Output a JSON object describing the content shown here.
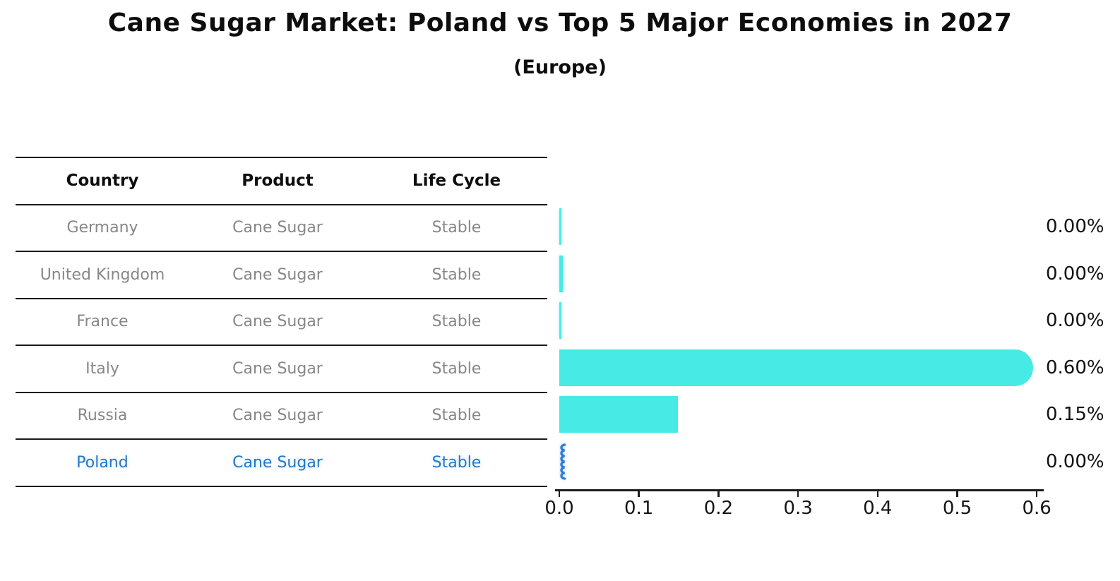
{
  "title": "Cane Sugar Market: Poland vs Top 5 Major Economies in 2027",
  "subtitle": "(Europe)",
  "table": {
    "headers": [
      "Country",
      "Product",
      "Life Cycle"
    ],
    "rows": [
      {
        "country": "Germany",
        "product": "Cane Sugar",
        "life_cycle": "Stable",
        "highlight": false
      },
      {
        "country": "United Kingdom",
        "product": "Cane Sugar",
        "life_cycle": "Stable",
        "highlight": false
      },
      {
        "country": "France",
        "product": "Cane Sugar",
        "life_cycle": "Stable",
        "highlight": false
      },
      {
        "country": "Italy",
        "product": "Cane Sugar",
        "life_cycle": "Stable",
        "highlight": false
      },
      {
        "country": "Russia",
        "product": "Cane Sugar",
        "life_cycle": "Stable",
        "highlight": false
      },
      {
        "country": "Poland",
        "product": "Cane Sugar",
        "life_cycle": "Stable",
        "highlight": true
      }
    ]
  },
  "chart_data": {
    "type": "bar",
    "orientation": "horizontal",
    "title": "Cane Sugar Market: Poland vs Top 5 Major Economies in 2027",
    "subtitle": "(Europe)",
    "categories": [
      "Germany",
      "United Kingdom",
      "France",
      "Italy",
      "Russia",
      "Poland"
    ],
    "values": [
      0.0,
      0.0,
      0.0,
      0.6,
      0.15,
      0.0
    ],
    "value_labels": [
      "0.00%",
      "0.00%",
      "0.00%",
      "0.60%",
      "0.15%",
      "0.00%"
    ],
    "x_ticks": [
      "0.0",
      "0.1",
      "0.2",
      "0.3",
      "0.4",
      "0.5",
      "0.6"
    ],
    "xlim": [
      0.0,
      0.65
    ],
    "grid": false,
    "legend_position": "none",
    "bar_color": "#48EAE5",
    "highlight_bar_color": "#2D7DD7",
    "highlight_text_color": "#2378C8"
  },
  "colors": {
    "background": "#FFFFFF",
    "text": "#0D0D0D",
    "muted_text": "#878787",
    "table_line": "#1B1B1B"
  }
}
